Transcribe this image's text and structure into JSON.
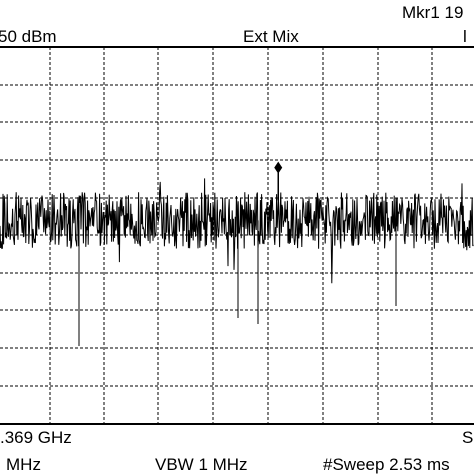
{
  "header": {
    "marker_readout": "Mkr1 19",
    "ref_level": "50 dBm",
    "mixer_mode": "Ext Mix",
    "corner_mark": "Ɩ"
  },
  "footer": {
    "start_freq": ".369 GHz",
    "span_mark": "S",
    "rbw": "MHz",
    "vbw": "VBW 1 MHz",
    "sweep": "#Sweep 2.53 ms"
  },
  "trace": {
    "noise_floor_division": 4.6,
    "noise_amplitude_division": 0.75,
    "marker_division": 3.2,
    "marker_position_fraction": 0.587
  },
  "colors": {
    "trace": "#000000",
    "grid": "#000000",
    "background": "#ffffff"
  }
}
